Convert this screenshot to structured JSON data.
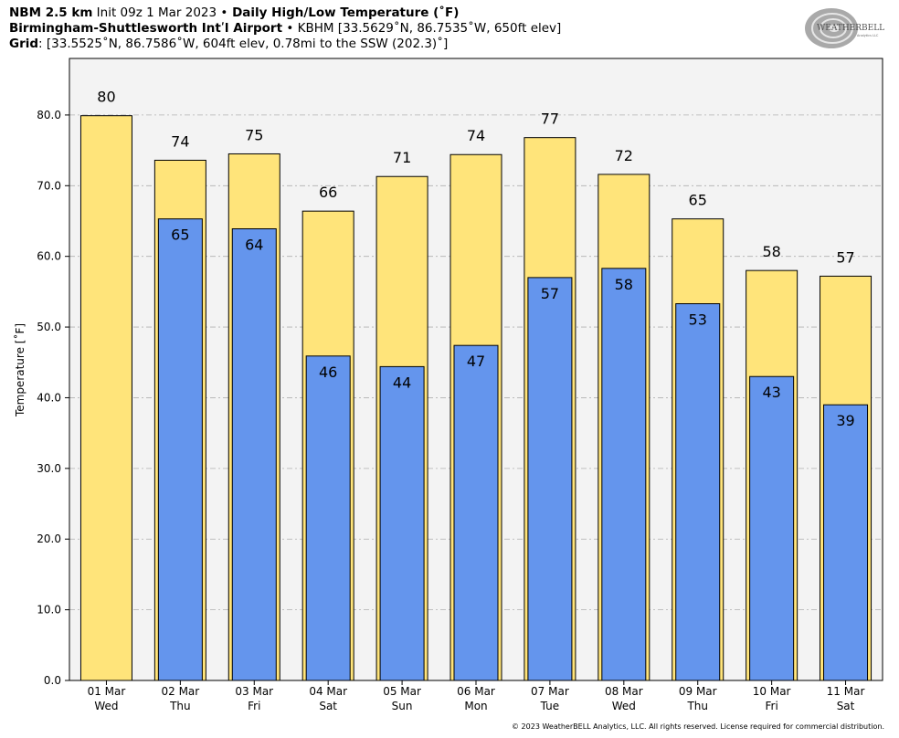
{
  "header": {
    "line1_model": "NBM 2.5 km",
    "line1_init": " Init 09z 1 Mar 2023 ",
    "line1_sep": "•",
    "line1_product": " Daily High/Low Temperature (˚F)",
    "line2_station": "Birmingham-Shuttlesworth Intʹl Airport",
    "line2_info": " • KBHM [33.5629˚N, 86.7535˚W, 650ft elev]",
    "line3_label": "Grid",
    "line3_info": ": [33.5525˚N, 86.7586˚W, 604ft elev, 0.78mi to the SSW (202.3)˚]"
  },
  "logo": {
    "text_main": "WEATHERBELL",
    "text_sub": "Analytics LLC"
  },
  "copyright": "© 2023 WeatherBELL Analytics, LLC. All rights reserved. License required for commercial distribution.",
  "chart_data": {
    "type": "bar",
    "ylabel": "Temperature [˚F]",
    "ylim": [
      0,
      88
    ],
    "yticks": [
      "0.0",
      "10.0",
      "20.0",
      "30.0",
      "40.0",
      "50.0",
      "60.0",
      "70.0",
      "80.0"
    ],
    "grid": true,
    "categories": [
      [
        "01 Mar",
        "Wed"
      ],
      [
        "02 Mar",
        "Thu"
      ],
      [
        "03 Mar",
        "Fri"
      ],
      [
        "04 Mar",
        "Sat"
      ],
      [
        "05 Mar",
        "Sun"
      ],
      [
        "06 Mar",
        "Mon"
      ],
      [
        "07 Mar",
        "Tue"
      ],
      [
        "08 Mar",
        "Wed"
      ],
      [
        "09 Mar",
        "Thu"
      ],
      [
        "10 Mar",
        "Fri"
      ],
      [
        "11 Mar",
        "Sat"
      ]
    ],
    "series": [
      {
        "values": [
          79.9,
          73.6,
          74.5,
          66.4,
          71.3,
          74.4,
          76.8,
          71.6,
          65.3,
          58.0,
          57.2
        ],
        "labels": [
          "80",
          "74",
          "75",
          "66",
          "71",
          "74",
          "77",
          "72",
          "65",
          "58",
          "57"
        ],
        "color": "#ffe47a"
      },
      {
        "values": [
          null,
          65.3,
          63.9,
          45.9,
          44.4,
          47.4,
          57.0,
          58.3,
          53.3,
          43.0,
          39.0
        ],
        "labels": [
          null,
          "65",
          "64",
          "46",
          "44",
          "47",
          "57",
          "58",
          "53",
          "43",
          "39"
        ],
        "color": "#6495ed"
      }
    ]
  }
}
